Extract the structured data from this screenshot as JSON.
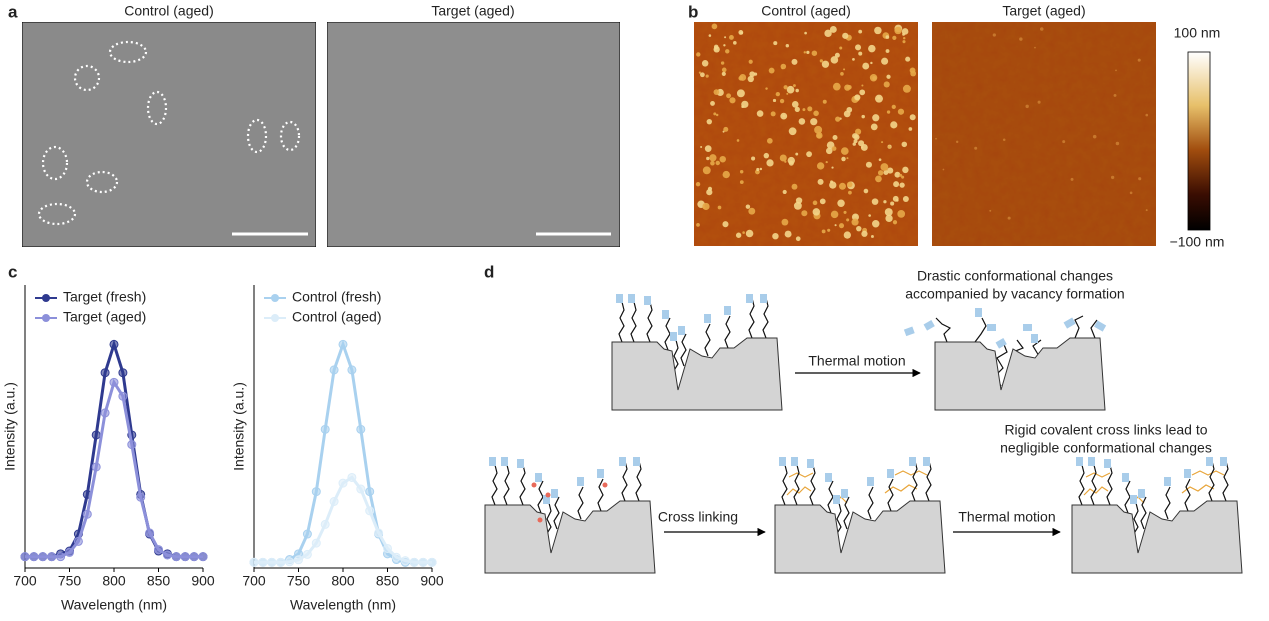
{
  "panel_labels": [
    "a",
    "b",
    "c",
    "d"
  ],
  "panel_a": {
    "titles": [
      "Control (aged)",
      "Target (aged)"
    ]
  },
  "panel_b": {
    "titles": [
      "Control (aged)",
      "Target (aged)"
    ],
    "colorbar": {
      "max_label": "100 nm",
      "min_label": "−100 nm"
    }
  },
  "chart_data": [
    {
      "type": "line",
      "xlabel": "Wavelength (nm)",
      "ylabel": "Intensity (a.u.)",
      "x": [
        700,
        710,
        720,
        730,
        740,
        750,
        760,
        770,
        780,
        790,
        800,
        810,
        820,
        830,
        840,
        850,
        860,
        870,
        880,
        890,
        900
      ],
      "xlim": [
        700,
        900
      ],
      "xticks": [
        700,
        750,
        800,
        850,
        900
      ],
      "ylim": [
        0,
        1
      ],
      "legend": "upper left",
      "series": [
        {
          "name": "Target (fresh)",
          "color": "#2f3a8f",
          "values": [
            0.04,
            0.04,
            0.04,
            0.04,
            0.05,
            0.06,
            0.12,
            0.26,
            0.47,
            0.69,
            0.79,
            0.69,
            0.47,
            0.26,
            0.12,
            0.06,
            0.05,
            0.04,
            0.04,
            0.04,
            0.04
          ]
        },
        {
          "name": "Target (aged)",
          "color": "#8c90da",
          "values": [
            0.04,
            0.04,
            0.04,
            0.04,
            0.04,
            0.055,
            0.094,
            0.19,
            0.357,
            0.548,
            0.656,
            0.607,
            0.436,
            0.25,
            0.124,
            0.065,
            0.046,
            0.04,
            0.04,
            0.04,
            0.04
          ]
        }
      ]
    },
    {
      "type": "line",
      "xlabel": "Wavelength (nm)",
      "ylabel": "Intensity (a.u.)",
      "x": [
        700,
        710,
        720,
        730,
        740,
        750,
        760,
        770,
        780,
        790,
        800,
        810,
        820,
        830,
        840,
        850,
        860,
        870,
        880,
        890,
        900
      ],
      "xlim": [
        700,
        900
      ],
      "xticks": [
        700,
        750,
        800,
        850,
        900
      ],
      "ylim": [
        0,
        1
      ],
      "legend": "upper left",
      "series": [
        {
          "name": "Control (fresh)",
          "color": "#a9d1ef",
          "values": [
            0.02,
            0.02,
            0.02,
            0.02,
            0.03,
            0.05,
            0.12,
            0.27,
            0.49,
            0.7,
            0.79,
            0.7,
            0.49,
            0.27,
            0.12,
            0.05,
            0.03,
            0.02,
            0.02,
            0.02,
            0.02
          ]
        },
        {
          "name": "Control (aged)",
          "color": "#dcedf9",
          "values": [
            0.02,
            0.02,
            0.02,
            0.02,
            0.022,
            0.029,
            0.048,
            0.088,
            0.154,
            0.235,
            0.3,
            0.32,
            0.279,
            0.202,
            0.124,
            0.069,
            0.038,
            0.026,
            0.02,
            0.02,
            0.02
          ]
        }
      ]
    }
  ],
  "panel_d": {
    "top_caption": [
      "Drastic conformational changes",
      "accompanied by vacancy formation"
    ],
    "bottom_caption": [
      "Rigid covalent cross links lead to",
      "negligible conformational changes"
    ],
    "arrows": [
      "Thermal motion",
      "Cross linking",
      "Thermal motion"
    ]
  }
}
